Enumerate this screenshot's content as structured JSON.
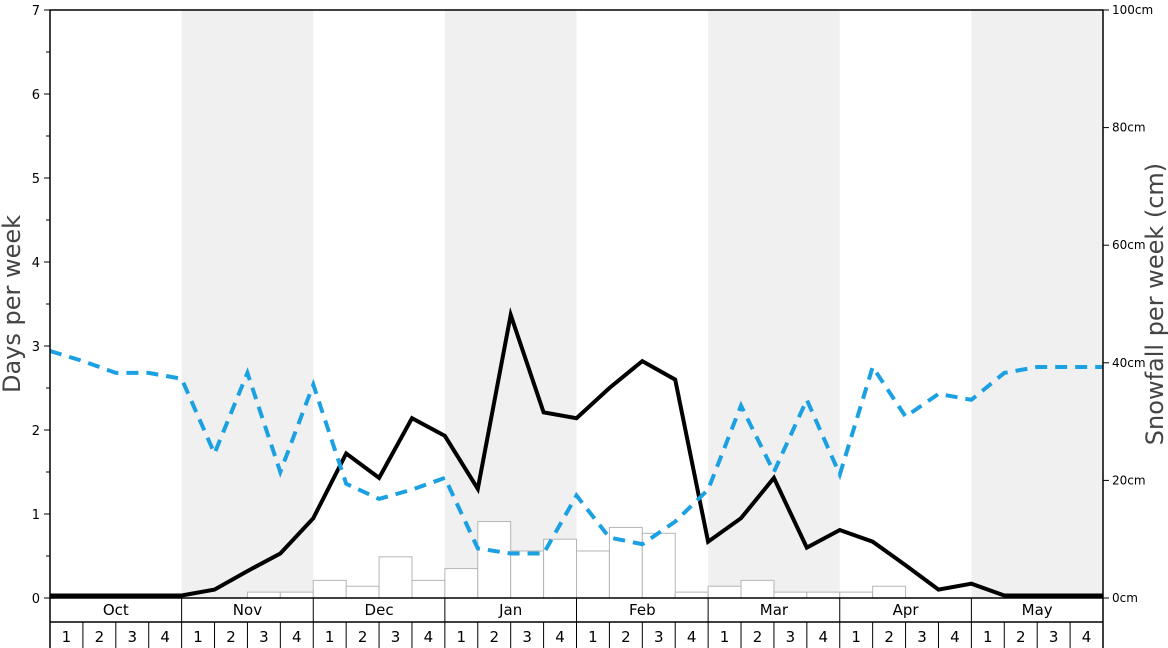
{
  "chart_data": {
    "type": "bar",
    "ylabel_left": "Days per week",
    "ylabel_right": "Snowfall per week (cm)",
    "ylim_left": [
      0,
      7
    ],
    "ylim_right": [
      0,
      100
    ],
    "y_ticks_left": [
      "0",
      "1",
      "2",
      "3",
      "4",
      "5",
      "6",
      "7"
    ],
    "y_ticks_right": [
      "0cm",
      "20cm",
      "40cm",
      "60cm",
      "80cm",
      "100cm"
    ],
    "months": [
      "Oct",
      "Nov",
      "Dec",
      "Jan",
      "Feb",
      "Mar",
      "Apr",
      "May"
    ],
    "week_labels": [
      "1",
      "2",
      "3",
      "4"
    ],
    "shaded_months": [
      "Nov",
      "Jan",
      "Mar",
      "May"
    ],
    "colors": {
      "bars": "#ffffff",
      "bar_stroke": "#b5b5b5",
      "line_solid": "#000000",
      "line_dashed": "#1ba1e2",
      "shade": "#f0f0f0"
    },
    "series": [
      {
        "kind": "bar",
        "axis": "right",
        "values": [
          0,
          0,
          0,
          0,
          0,
          0,
          1,
          1,
          3,
          2,
          7,
          3,
          5,
          13,
          8,
          10,
          8,
          12,
          11,
          1,
          2,
          3,
          1,
          1,
          1,
          2,
          0,
          0,
          0,
          0,
          0,
          0
        ]
      },
      {
        "kind": "line",
        "style": "solid",
        "axis": "left",
        "values": [
          0.03,
          0.03,
          0.03,
          0.03,
          0.03,
          0.1,
          0.32,
          0.53,
          0.95,
          1.72,
          1.43,
          2.14,
          1.93,
          1.3,
          3.37,
          2.21,
          2.14,
          2.5,
          2.82,
          2.6,
          0.67,
          0.95,
          1.43,
          0.6,
          0.81,
          0.67,
          0.39,
          0.1,
          0.17,
          0.03,
          0.03,
          0.03
        ]
      },
      {
        "kind": "line",
        "style": "dashed",
        "axis": "left",
        "values": [
          2.94,
          2.82,
          2.68,
          2.68,
          2.61,
          1.72,
          2.68,
          1.5,
          2.54,
          1.36,
          1.18,
          1.29,
          1.43,
          0.59,
          0.53,
          0.53,
          1.22,
          0.72,
          0.64,
          0.91,
          1.29,
          2.29,
          1.5,
          2.36,
          1.47,
          2.75,
          2.16,
          2.43,
          2.36,
          2.68,
          2.75,
          2.75
        ]
      }
    ]
  }
}
